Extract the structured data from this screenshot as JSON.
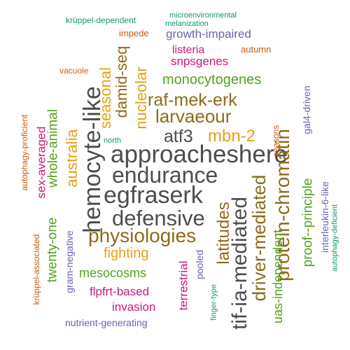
{
  "palette": {
    "grey": "#4d4d4d",
    "brown": "#8c6a1a",
    "gold": "#e6a012",
    "green": "#55a11f",
    "magenta": "#d1147d",
    "purple": "#6c62b0",
    "orange": "#cc5a12",
    "teal": "#16966e"
  },
  "words": [
    {
      "text": "approacheshere",
      "color": "grey"
    },
    {
      "text": "endurance",
      "color": "grey"
    },
    {
      "text": "egfraserk",
      "color": "grey"
    },
    {
      "text": "hemocyte-like",
      "color": "grey"
    },
    {
      "text": "defensive",
      "color": "grey"
    },
    {
      "text": "atf3",
      "color": "grey"
    },
    {
      "text": "tif-ia-mediated",
      "color": "grey"
    },
    {
      "text": "physiologies",
      "color": "brown"
    },
    {
      "text": "raf-mek-erk",
      "color": "brown"
    },
    {
      "text": "larvaeour",
      "color": "brown"
    },
    {
      "text": "protein-chromatin",
      "color": "brown"
    },
    {
      "text": "driver-mediated",
      "color": "brown"
    },
    {
      "text": "latitudes",
      "color": "brown"
    },
    {
      "text": "damid-seq",
      "color": "brown"
    },
    {
      "text": "mbn-2",
      "color": "gold"
    },
    {
      "text": "seasonal",
      "color": "gold"
    },
    {
      "text": "nucleolar",
      "color": "gold"
    },
    {
      "text": "australia",
      "color": "gold"
    },
    {
      "text": "fighting",
      "color": "gold"
    },
    {
      "text": "monocytogenes",
      "color": "green"
    },
    {
      "text": "twenty-one",
      "color": "green"
    },
    {
      "text": "whole-animal",
      "color": "green"
    },
    {
      "text": "mesocosms",
      "color": "green"
    },
    {
      "text": "proof--principle",
      "color": "green"
    },
    {
      "text": "uas-independent",
      "color": "green"
    },
    {
      "text": "sex-averaged",
      "color": "magenta"
    },
    {
      "text": "terrestrial",
      "color": "magenta"
    },
    {
      "text": "flpfrt-based",
      "color": "magenta"
    },
    {
      "text": "invasion",
      "color": "magenta"
    },
    {
      "text": "listeria",
      "color": "magenta"
    },
    {
      "text": "snpsgenes",
      "color": "magenta"
    },
    {
      "text": "growth-impaired",
      "color": "purple"
    },
    {
      "text": "gram-negative",
      "color": "purple"
    },
    {
      "text": "nutrient-generating",
      "color": "purple"
    },
    {
      "text": "pooled",
      "color": "purple"
    },
    {
      "text": "gal4-driven",
      "color": "purple"
    },
    {
      "text": "interleukin-6-like",
      "color": "purple"
    },
    {
      "text": "autumn",
      "color": "orange"
    },
    {
      "text": "impede",
      "color": "orange"
    },
    {
      "text": "vacuole",
      "color": "orange"
    },
    {
      "text": "seasons",
      "color": "orange"
    },
    {
      "text": "krüppel-associated",
      "color": "orange"
    },
    {
      "text": "autophagy-proficient",
      "color": "orange"
    },
    {
      "text": "krüppel-dependent",
      "color": "teal"
    },
    {
      "text": "microenvironmental",
      "color": "teal"
    },
    {
      "text": "melanization",
      "color": "teal"
    },
    {
      "text": "north",
      "color": "teal"
    },
    {
      "text": "finger-type",
      "color": "teal"
    },
    {
      "text": "autophagy-deficient",
      "color": "teal"
    }
  ]
}
